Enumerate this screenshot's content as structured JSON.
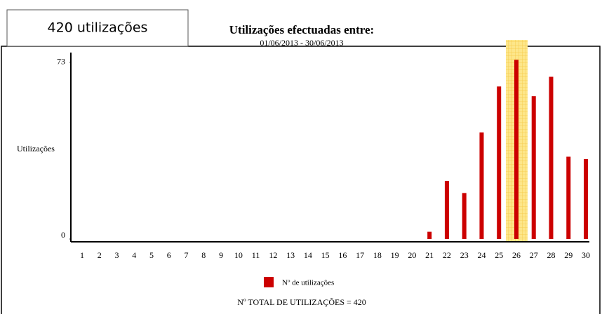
{
  "chart_data": {
    "type": "bar",
    "badge": "420 utilizações",
    "title": "Utilizações efectuadas entre:",
    "subtitle": "01/06/2013 - 30/06/2013",
    "y_label": "Utilizações",
    "categories": [
      "1",
      "2",
      "3",
      "4",
      "5",
      "6",
      "7",
      "8",
      "9",
      "10",
      "11",
      "12",
      "13",
      "14",
      "15",
      "16",
      "17",
      "18",
      "19",
      "20",
      "21",
      "22",
      "23",
      "24",
      "25",
      "26",
      "27",
      "28",
      "29",
      "30"
    ],
    "series": [
      {
        "name": "Nº de utilizações",
        "color": "#cc0000",
        "values": [
          0,
          0,
          0,
          0,
          0,
          0,
          0,
          0,
          0,
          0,
          0,
          0,
          0,
          0,
          0,
          0,
          0,
          0,
          0,
          0,
          3,
          24,
          19,
          44,
          63,
          74,
          59,
          67,
          34,
          33
        ]
      }
    ],
    "highlighted_category": "26",
    "ylim": [
      0,
      77
    ],
    "yticks": [
      0,
      73
    ],
    "footer": "Nº TOTAL DE UTILIZAÇÕES = 420"
  }
}
